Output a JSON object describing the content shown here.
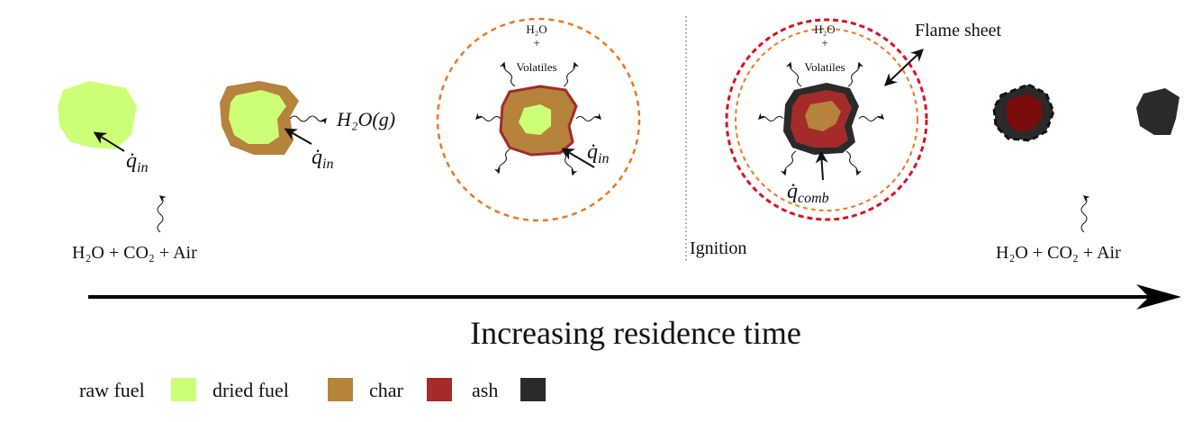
{
  "colors": {
    "raw_fuel": "#ccff77",
    "dried_fuel": "#b5833b",
    "char": "#a52a2a",
    "ash": "#2a2a2a",
    "flame": "#dd1122",
    "volatile_cloud": "#ee7722"
  },
  "labels": {
    "inflow_left": "H₂O + CO₂ + Air",
    "inflow_right": "H₂O + CO₂ + Air",
    "q_in_1": "q̇",
    "q_in_2": "q̇",
    "q_in_3": "q̇",
    "q_sub_in": "in",
    "q_comb": "q̇",
    "q_sub_comb": "comb",
    "steam": "H₂O(g)",
    "h2o_1": "H₂O",
    "plus_1": "+",
    "volatiles_1": "Volatiles",
    "h2o_2": "H₂O",
    "plus_2": "+",
    "volatiles_2": "Volatiles",
    "flame_sheet": "Flame sheet",
    "ignition": "Ignition",
    "axis": "Increasing residence time"
  },
  "legend": [
    {
      "label": "raw fuel",
      "color": "#ccff77"
    },
    {
      "label": "dried fuel",
      "color": "#b5833b"
    },
    {
      "label": "char",
      "color": "#a52a2a"
    },
    {
      "label": "ash",
      "color": "#2a2a2a"
    }
  ]
}
